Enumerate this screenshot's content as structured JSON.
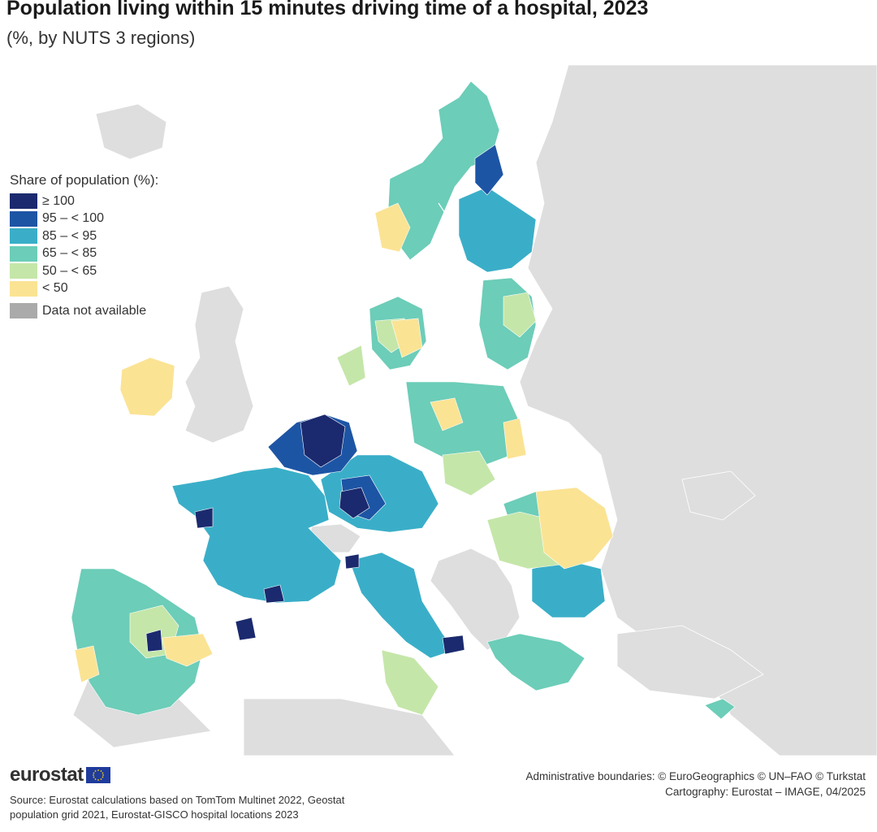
{
  "title": "Population living within 15 minutes driving time of a hospital, 2023",
  "subtitle": "(%, by NUTS 3 regions)",
  "legend": {
    "title": "Share of population (%):",
    "classes": [
      {
        "label": "≥ 100",
        "color": "#1b2a6e"
      },
      {
        "label": "95 – < 100",
        "color": "#1d55a5"
      },
      {
        "label": "85 – < 95",
        "color": "#3aaec8"
      },
      {
        "label": "65 – < 85",
        "color": "#6ccdb8"
      },
      {
        "label": "50 – < 65",
        "color": "#c5e6a9"
      },
      {
        "label": "< 50",
        "color": "#fbe394"
      }
    ],
    "na": {
      "label": "Data not available",
      "color": "#aaaaaa"
    }
  },
  "colors": {
    "non_eu_land": "#dedede",
    "sea": "#ffffff",
    "no_data": "#aaaaaa"
  },
  "footer": {
    "logo": "eurostat",
    "source_line1": "Source: Eurostat calculations based on TomTom Multinet 2022, Geostat",
    "source_line2": "population grid 2021, Eurostat-GISCO hospital locations 2023",
    "boundaries": "Administrative boundaries: © EuroGeographics © UN–FAO © Turkstat",
    "cartography": "Cartography: Eurostat – IMAGE, 04/2025"
  }
}
